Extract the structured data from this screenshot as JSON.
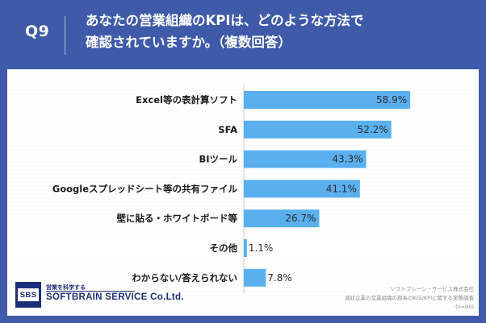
{
  "header": {
    "question_number": "Q9",
    "title": "あなたの営業組織のKPIは、どのような方法で\n確認されていますか。（複数回答）"
  },
  "chart_data": {
    "type": "bar",
    "orientation": "horizontal",
    "categories": [
      "Excel等の表計算ソフト",
      "SFA",
      "BIツール",
      "Googleスプレッドシート等の共有ファイル",
      "壁に貼る・ホワイトボード等",
      "その他",
      "わからない/答えられない"
    ],
    "values": [
      58.9,
      52.2,
      43.3,
      41.1,
      26.7,
      1.1,
      7.8
    ],
    "value_labels": [
      "58.9%",
      "52.2%",
      "43.3%",
      "41.1%",
      "26.7%",
      "1.1%",
      "7.8%"
    ],
    "unit": "%",
    "xlim": [
      0,
      60
    ],
    "bar_color": "#5ab0ef",
    "grid": false,
    "legend": "none"
  },
  "footer": {
    "logo_badge": "SBS",
    "logo_tagline": "営業を科学する",
    "logo_name": "SOFTBRAIN SERVICE Co.Ltd.",
    "source_line1": "ソフトブレーン・サービス株式会社",
    "source_line2": "減収企業の営業組織の部長のKGI/KPIに関する実態調査",
    "source_line3": "(n=90)"
  },
  "colors": {
    "background": "#3f5aa8",
    "panel": "#ffffff",
    "bar": "#5ab0ef",
    "brand": "#1d2f7a"
  }
}
